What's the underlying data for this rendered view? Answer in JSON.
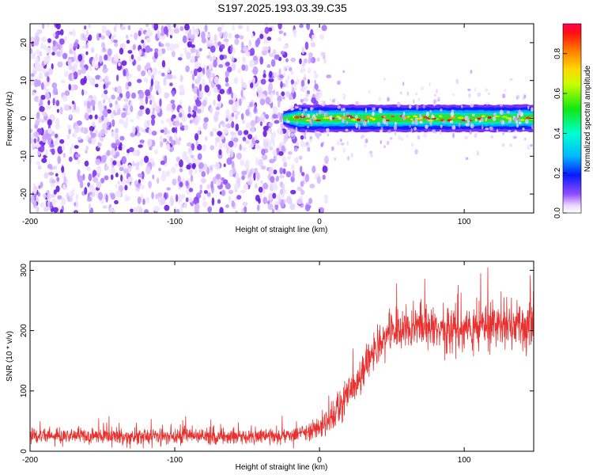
{
  "title": "S197.2025.193.03.39.C35",
  "chart_data": [
    {
      "type": "heatmap",
      "xlabel": "Height of straight line (km)",
      "ylabel": "Frequency (Hz)",
      "xlim": [
        -200,
        148
      ],
      "ylim": [
        -25,
        25
      ],
      "x_ticks": [
        "-200",
        "-100",
        "0",
        "100"
      ],
      "y_ticks": [
        "-20",
        "-10",
        "0",
        "10",
        "20"
      ],
      "noise_region_x": [
        -200,
        0
      ],
      "signal_onset_x": -25,
      "signal_center_frequency": 0,
      "signal_band_halfwidth": 1.5,
      "colorbar": {
        "label": "Normalized spectral amplitude",
        "range": [
          0,
          0.95
        ],
        "ticks": [
          "0.0",
          "0.2",
          "0.4",
          "0.6",
          "0.8"
        ],
        "colormap": "rainbow (violet to red)"
      }
    },
    {
      "type": "line",
      "xlabel": "Height of straight line (km)",
      "ylabel": "SNR (10 * v/v)",
      "xlim": [
        -200,
        148
      ],
      "ylim": [
        0,
        315
      ],
      "x_ticks": [
        "-200",
        "-100",
        "0",
        "100"
      ],
      "y_ticks": [
        "0",
        "100",
        "200",
        "300"
      ],
      "color": "#e8312f",
      "series": [
        {
          "x": [
            -200,
            -175,
            -150,
            -125,
            -100,
            -75,
            -50,
            -25,
            -10,
            0,
            10,
            20,
            30,
            40,
            50,
            60,
            80,
            100,
            120,
            148
          ],
          "y": [
            25,
            25,
            25,
            25,
            25,
            25,
            25,
            26,
            30,
            38,
            60,
            95,
            135,
            175,
            200,
            205,
            205,
            205,
            210,
            205
          ],
          "spread": [
            12,
            12,
            12,
            12,
            12,
            12,
            12,
            12,
            13,
            15,
            20,
            25,
            28,
            30,
            30,
            32,
            32,
            35,
            38,
            40
          ]
        }
      ]
    }
  ]
}
